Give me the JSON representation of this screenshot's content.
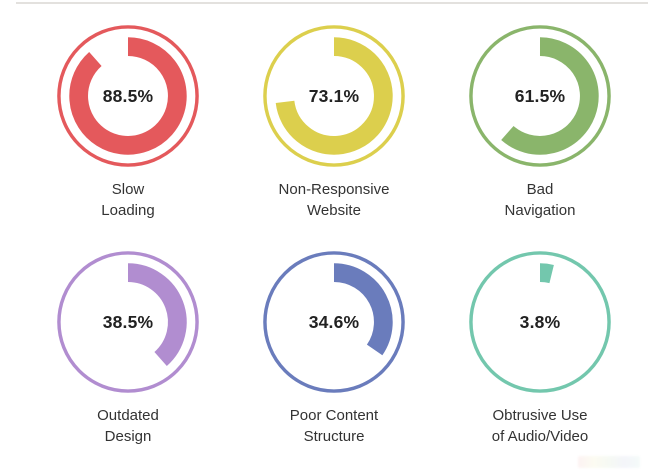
{
  "page": {
    "background": "#ffffff",
    "top_border_color": "#e3e1de"
  },
  "chart_data": {
    "type": "pie",
    "variant": "donut-gauge-grid",
    "title": "",
    "start_angle_deg": 0,
    "direction": "clockwise",
    "max": 100,
    "grid": "2 rows x 3 columns",
    "items": [
      {
        "label": "Slow Loading",
        "label_lines": [
          "Slow",
          "Loading"
        ],
        "value": 88.5,
        "value_label": "88.5%",
        "color": "#e4595c"
      },
      {
        "label": "Non-Responsive Website",
        "label_lines": [
          "Non-Responsive",
          "Website"
        ],
        "value": 73.1,
        "value_label": "73.1%",
        "color": "#dccf4d"
      },
      {
        "label": "Bad Navigation",
        "label_lines": [
          "Bad",
          "Navigation"
        ],
        "value": 61.5,
        "value_label": "61.5%",
        "color": "#8ab56b"
      },
      {
        "label": "Outdated Design",
        "label_lines": [
          "Outdated",
          "Design"
        ],
        "value": 38.5,
        "value_label": "38.5%",
        "color": "#b18dd0"
      },
      {
        "label": "Poor Content Structure",
        "label_lines": [
          "Poor Content",
          "Structure"
        ],
        "value": 34.6,
        "value_label": "34.6%",
        "color": "#6a7cbc"
      },
      {
        "label": "Obtrusive Use of Audio/Video",
        "label_lines": [
          "Obtrusive Use",
          "of Audio/Video"
        ],
        "value": 3.8,
        "value_label": "3.8%",
        "color": "#73c7ad"
      }
    ],
    "ring_style": {
      "outer_ring_stroke": 3.5,
      "arc_radius": 50,
      "arc_stroke": 19,
      "outer_radius": 70
    }
  },
  "watermark": {
    "colors": [
      "#e4595c",
      "#dccf4d",
      "#8ab56b",
      "#6a7cbc",
      "#73c7ad"
    ]
  }
}
